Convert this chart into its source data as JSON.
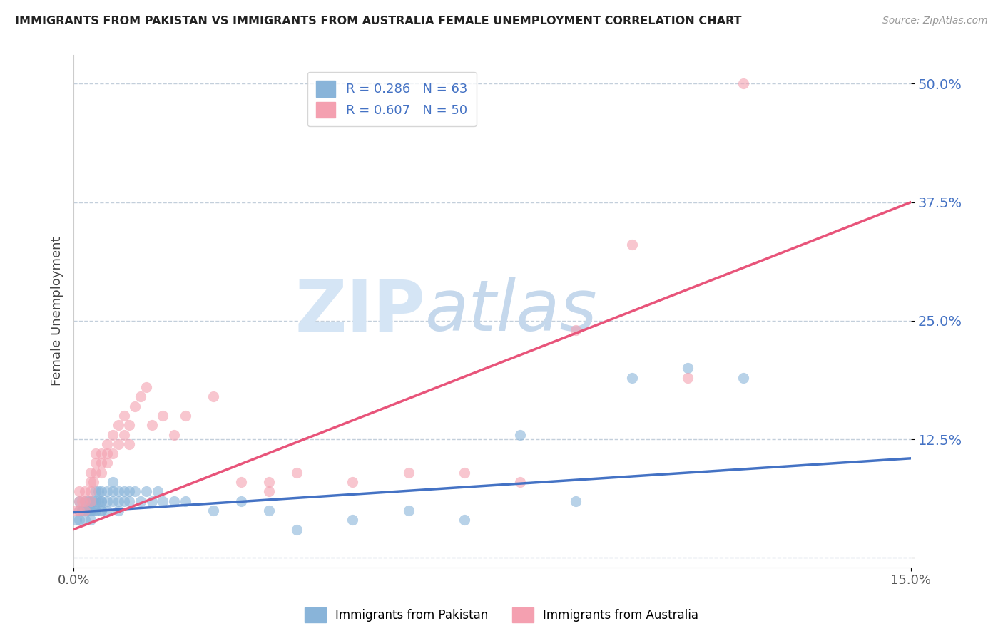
{
  "title": "IMMIGRANTS FROM PAKISTAN VS IMMIGRANTS FROM AUSTRALIA FEMALE UNEMPLOYMENT CORRELATION CHART",
  "source": "Source: ZipAtlas.com",
  "ylabel": "Female Unemployment",
  "yticks": [
    0.0,
    0.125,
    0.25,
    0.375,
    0.5
  ],
  "ytick_labels": [
    "",
    "12.5%",
    "25.0%",
    "37.5%",
    "50.0%"
  ],
  "xtick_labels": [
    "0.0%",
    "15.0%"
  ],
  "xlim": [
    0.0,
    0.15
  ],
  "ylim": [
    -0.01,
    0.53
  ],
  "pakistan_R": 0.286,
  "pakistan_N": 63,
  "australia_R": 0.607,
  "australia_N": 50,
  "pakistan_color": "#89B4D9",
  "australia_color": "#F4A0B0",
  "pakistan_line_color": "#4472C4",
  "australia_line_color": "#E8547A",
  "watermark_zip": "ZIP",
  "watermark_atlas": "atlas",
  "watermark_color_zip": "#D0DFF0",
  "watermark_color_atlas": "#C8D8E8",
  "legend_text_color": "#4472C4",
  "ytick_color": "#4472C4",
  "pakistan_x": [
    0.0005,
    0.001,
    0.001,
    0.001,
    0.0015,
    0.0015,
    0.002,
    0.002,
    0.002,
    0.002,
    0.0025,
    0.0025,
    0.003,
    0.003,
    0.003,
    0.003,
    0.003,
    0.0035,
    0.0035,
    0.004,
    0.004,
    0.004,
    0.004,
    0.0045,
    0.0045,
    0.005,
    0.005,
    0.005,
    0.005,
    0.005,
    0.006,
    0.006,
    0.006,
    0.007,
    0.007,
    0.007,
    0.008,
    0.008,
    0.008,
    0.009,
    0.009,
    0.01,
    0.01,
    0.011,
    0.012,
    0.013,
    0.014,
    0.015,
    0.016,
    0.018,
    0.02,
    0.025,
    0.03,
    0.035,
    0.04,
    0.05,
    0.06,
    0.07,
    0.08,
    0.09,
    0.1,
    0.11,
    0.12
  ],
  "pakistan_y": [
    0.04,
    0.05,
    0.04,
    0.06,
    0.05,
    0.05,
    0.04,
    0.06,
    0.05,
    0.05,
    0.05,
    0.06,
    0.06,
    0.05,
    0.06,
    0.04,
    0.05,
    0.06,
    0.05,
    0.06,
    0.05,
    0.07,
    0.05,
    0.06,
    0.07,
    0.06,
    0.05,
    0.07,
    0.06,
    0.05,
    0.07,
    0.06,
    0.05,
    0.07,
    0.06,
    0.08,
    0.07,
    0.06,
    0.05,
    0.07,
    0.06,
    0.07,
    0.06,
    0.07,
    0.06,
    0.07,
    0.06,
    0.07,
    0.06,
    0.06,
    0.06,
    0.05,
    0.06,
    0.05,
    0.03,
    0.04,
    0.05,
    0.04,
    0.13,
    0.06,
    0.19,
    0.2,
    0.19
  ],
  "australia_x": [
    0.0005,
    0.001,
    0.001,
    0.001,
    0.0015,
    0.002,
    0.002,
    0.002,
    0.003,
    0.003,
    0.003,
    0.003,
    0.0035,
    0.004,
    0.004,
    0.004,
    0.005,
    0.005,
    0.005,
    0.006,
    0.006,
    0.006,
    0.007,
    0.007,
    0.008,
    0.008,
    0.009,
    0.009,
    0.01,
    0.01,
    0.011,
    0.012,
    0.013,
    0.014,
    0.016,
    0.018,
    0.02,
    0.025,
    0.03,
    0.035,
    0.04,
    0.05,
    0.06,
    0.07,
    0.08,
    0.09,
    0.1,
    0.11,
    0.12,
    0.035
  ],
  "australia_y": [
    0.05,
    0.05,
    0.06,
    0.07,
    0.06,
    0.05,
    0.06,
    0.07,
    0.06,
    0.07,
    0.08,
    0.09,
    0.08,
    0.09,
    0.1,
    0.11,
    0.1,
    0.11,
    0.09,
    0.1,
    0.12,
    0.11,
    0.11,
    0.13,
    0.12,
    0.14,
    0.13,
    0.15,
    0.12,
    0.14,
    0.16,
    0.17,
    0.18,
    0.14,
    0.15,
    0.13,
    0.15,
    0.17,
    0.08,
    0.08,
    0.09,
    0.08,
    0.09,
    0.09,
    0.08,
    0.24,
    0.33,
    0.19,
    0.5,
    0.07
  ],
  "pak_line_x0": 0.0,
  "pak_line_y0": 0.048,
  "pak_line_x1": 0.15,
  "pak_line_y1": 0.105,
  "aus_line_x0": 0.0,
  "aus_line_y0": 0.03,
  "aus_line_x1": 0.15,
  "aus_line_y1": 0.375
}
